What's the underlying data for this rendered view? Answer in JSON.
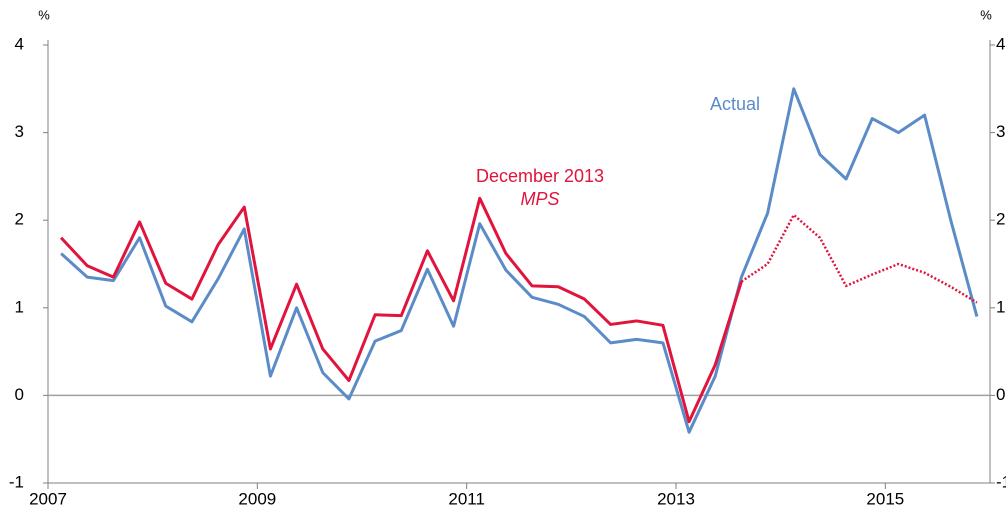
{
  "chart_data": {
    "type": "line",
    "y_unit_left": "%",
    "y_unit_right": "%",
    "xlim": [
      2007,
      2016
    ],
    "xticks": [
      2007,
      2009,
      2011,
      2013,
      2015
    ],
    "ylim": [
      -1,
      4
    ],
    "yticks": [
      -1,
      0,
      1,
      2,
      3,
      4
    ],
    "y2lim": [
      -1,
      4
    ],
    "y2ticks": [
      -1,
      0,
      1,
      2,
      3,
      4
    ],
    "zero_line": true,
    "x": [
      2007.125,
      2007.375,
      2007.625,
      2007.875,
      2008.125,
      2008.375,
      2008.625,
      2008.875,
      2009.125,
      2009.375,
      2009.625,
      2009.875,
      2010.125,
      2010.375,
      2010.625,
      2010.875,
      2011.125,
      2011.375,
      2011.625,
      2011.875,
      2012.125,
      2012.375,
      2012.625,
      2012.875,
      2013.125,
      2013.375,
      2013.625,
      2013.875,
      2014.125,
      2014.375,
      2014.625,
      2014.875,
      2015.125,
      2015.375,
      2015.625,
      2015.875
    ],
    "series": [
      {
        "name": "Actual",
        "color": "#5b8cc8",
        "values": [
          1.62,
          1.35,
          1.31,
          1.8,
          1.02,
          0.84,
          1.33,
          1.9,
          0.22,
          1.0,
          0.26,
          -0.04,
          0.62,
          0.74,
          1.44,
          0.79,
          1.96,
          1.43,
          1.12,
          1.04,
          0.9,
          0.6,
          0.64,
          0.6,
          -0.42,
          0.22,
          1.35,
          2.08,
          3.5,
          2.75,
          2.47,
          3.16,
          3.0,
          3.2,
          2.0,
          0.9
        ]
      },
      {
        "name": "December 2013",
        "name_italic": "MPS",
        "color": "#e0143c",
        "dotted_from_index": 26,
        "values": [
          1.8,
          1.48,
          1.35,
          1.98,
          1.28,
          1.1,
          1.72,
          2.15,
          0.53,
          1.27,
          0.53,
          0.17,
          0.92,
          0.91,
          1.65,
          1.08,
          2.25,
          1.62,
          1.25,
          1.24,
          1.1,
          0.81,
          0.85,
          0.8,
          -0.3,
          0.35,
          1.3,
          1.5,
          2.06,
          1.8,
          1.25,
          1.38,
          1.5,
          1.4,
          1.24,
          1.06
        ]
      }
    ]
  }
}
